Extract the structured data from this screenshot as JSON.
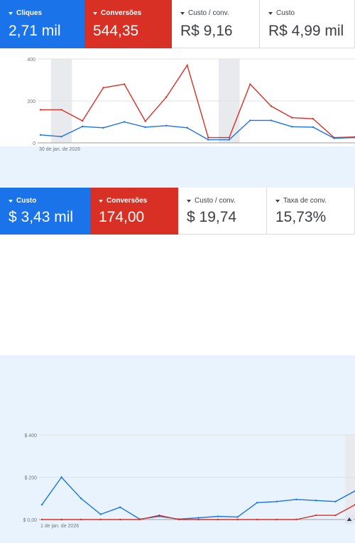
{
  "colors": {
    "blue": "#1a73e8",
    "red": "#d93025",
    "bar": "#e8eaed",
    "grid": "#e0e0e0",
    "axis_text": "#757575"
  },
  "panel1": {
    "cards": [
      {
        "label": "Cliques",
        "value": "2,71 mil",
        "style": "blue"
      },
      {
        "label": "Conversões",
        "value": "544,35",
        "style": "red"
      },
      {
        "label": "Custo / conv.",
        "value": "R$ 9,16",
        "style": "white"
      },
      {
        "label": "Custo",
        "value": "R$ 4,99 mil",
        "style": "white"
      }
    ]
  },
  "panel2": {
    "cards": [
      {
        "label": "Custo",
        "value": "$ 3,43 mil",
        "style": "blue"
      },
      {
        "label": "Conversões",
        "value": "174,00",
        "style": "red"
      },
      {
        "label": "Custo / conv.",
        "value": "$ 19,74",
        "style": "white"
      },
      {
        "label": "Taxa de conv.",
        "value": "15,73%",
        "style": "white"
      }
    ]
  },
  "chart_data": [
    {
      "type": "line",
      "y_tick_labels": [
        "400",
        "200",
        "0"
      ],
      "ylim": [
        0,
        400
      ],
      "x_start_label": "30 de jan. de 2026",
      "x": [
        0,
        1,
        2,
        3,
        4,
        5,
        6,
        7,
        8,
        9,
        10,
        11,
        12,
        13,
        14,
        15
      ],
      "series": [
        {
          "color": "red",
          "values": [
            158,
            158,
            105,
            263,
            280,
            103,
            218,
            370,
            25,
            25,
            280,
            175,
            120,
            115,
            25,
            28
          ]
        },
        {
          "color": "blue",
          "values": [
            38,
            30,
            78,
            72,
            100,
            75,
            82,
            72,
            15,
            15,
            107,
            107,
            77,
            75,
            22,
            25
          ]
        }
      ],
      "shaded_points": [
        1,
        9
      ],
      "grid": true
    },
    {
      "type": "line",
      "y_tick_labels": [
        "$ 400",
        "$ 200",
        "$ 0,00"
      ],
      "ylim": [
        0,
        400
      ],
      "x_start_label": "1 de jan. de 2026",
      "x": [
        0,
        1,
        2,
        3,
        4,
        5,
        6,
        7,
        8,
        9,
        10,
        11,
        12,
        13,
        14,
        15,
        16
      ],
      "series": [
        {
          "color": "blue",
          "values": [
            70,
            200,
            100,
            25,
            58,
            2,
            15,
            2,
            8,
            15,
            12,
            80,
            85,
            95,
            90,
            85,
            135
          ]
        },
        {
          "color": "red",
          "values": [
            0,
            0,
            0,
            0,
            0,
            0,
            20,
            0,
            0,
            0,
            0,
            0,
            0,
            0,
            20,
            20,
            70
          ]
        }
      ],
      "shaded_points": [
        16
      ],
      "grid": true
    }
  ]
}
